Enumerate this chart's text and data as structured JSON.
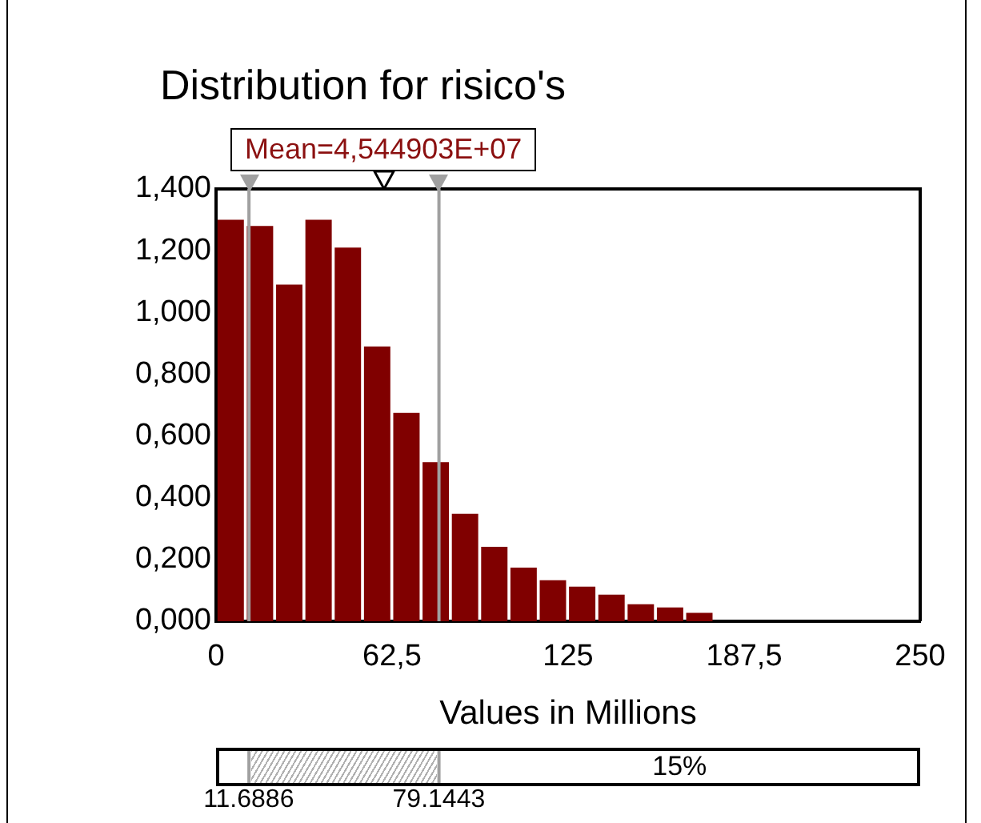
{
  "chart_data": {
    "type": "histogram",
    "title": "Distribution for risico's",
    "xlabel": "Values in Millions",
    "bins": [
      0,
      10.4,
      20.8,
      31.2,
      41.6,
      52,
      62.4,
      72.8,
      83.2,
      93.6,
      104,
      114.4,
      124.8,
      135.2,
      145.6,
      156,
      166.4,
      176.8
    ],
    "values": [
      1.3,
      1.28,
      1.09,
      1.3,
      1.21,
      0.89,
      0.675,
      0.515,
      0.348,
      0.241,
      0.174,
      0.133,
      0.112,
      0.086,
      0.055,
      0.045,
      0.027
    ],
    "color": "#800000",
    "xlim": [
      0,
      250
    ],
    "xticks": [
      0,
      {
        "value": 62.5,
        "label": "62,5"
      },
      125,
      {
        "value": 187.5,
        "label": "187,5"
      },
      250
    ],
    "ylim": [
      0,
      1.4
    ],
    "yticks": [
      {
        "value": 0,
        "label": "0,000"
      },
      {
        "value": 0.2,
        "label": "0,200"
      },
      {
        "value": 0.4,
        "label": "0,400"
      },
      {
        "value": 0.6,
        "label": "0,600"
      },
      {
        "value": 0.8,
        "label": "0,800"
      },
      {
        "value": 1,
        "label": "1,000"
      },
      {
        "value": 1.2,
        "label": "1,200"
      },
      {
        "value": 1.4,
        "label": "1,400"
      }
    ],
    "grid": false,
    "ref_lines": [
      {
        "axis": "x",
        "value": 11.6886,
        "color": "#a0a0a0"
      },
      {
        "axis": "x",
        "value": 79.1443,
        "color": "#a0a0a0"
      }
    ],
    "annotations": [
      "Mean=4,544903E+07",
      "15%",
      "11.6886",
      "79.1443"
    ]
  }
}
